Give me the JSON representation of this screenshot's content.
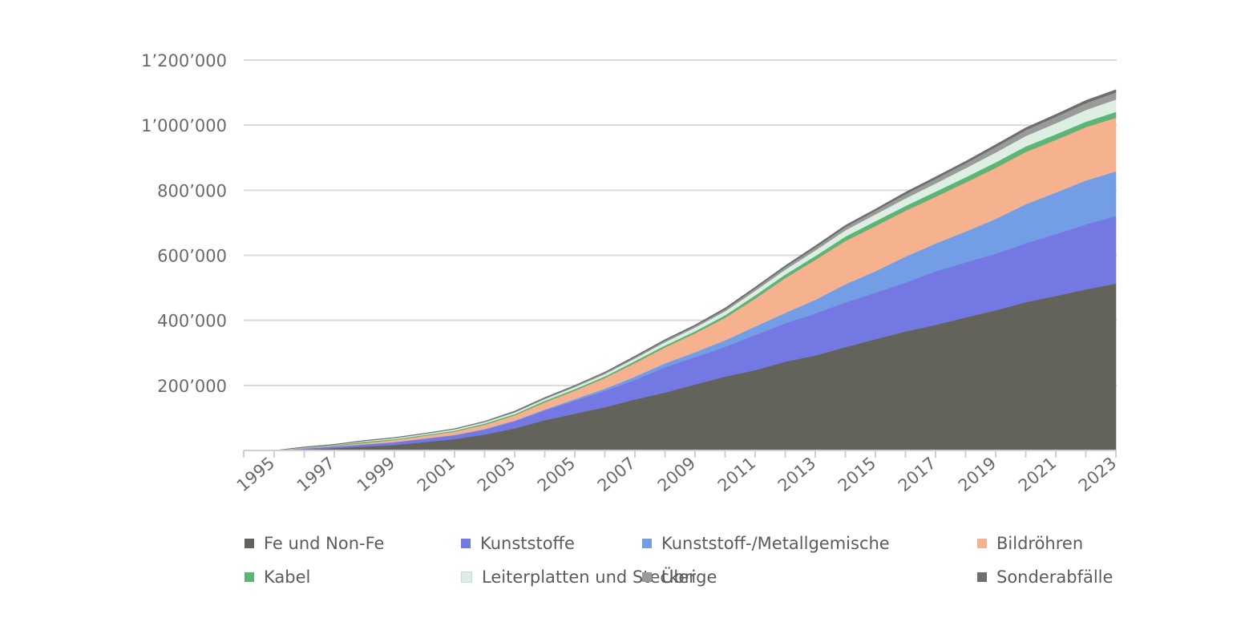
{
  "chart_data": {
    "type": "area",
    "stacked": true,
    "title": "",
    "xlabel": "",
    "ylabel": "",
    "ylim": [
      0,
      1200000
    ],
    "y_ticks": [
      "1’200’000",
      "1’000’000",
      "800’000",
      "600’000",
      "400’000",
      "200’000"
    ],
    "y_tick_values": [
      1200000,
      1000000,
      800000,
      600000,
      400000,
      200000
    ],
    "x": [
      1995,
      1996,
      1997,
      1998,
      1999,
      2000,
      2001,
      2002,
      2003,
      2004,
      2005,
      2006,
      2007,
      2008,
      2009,
      2010,
      2011,
      2012,
      2013,
      2014,
      2015,
      2016,
      2017,
      2018,
      2019,
      2020,
      2021,
      2022,
      2023
    ],
    "x_tick_labels": [
      "1995",
      "1997",
      "1999",
      "2001",
      "2003",
      "2005",
      "2007",
      "2009",
      "2011",
      "2013",
      "2015",
      "2017",
      "2019",
      "2021",
      "2023"
    ],
    "grid": true,
    "legend_position": "bottom",
    "series": [
      {
        "name": "Fe und Non-Fe",
        "color": "#63635b",
        "values": [
          0,
          3000,
          7000,
          12000,
          17000,
          26000,
          35000,
          49000,
          68000,
          93000,
          113000,
          133000,
          157000,
          178000,
          203000,
          227000,
          247000,
          273000,
          292000,
          318000,
          342000,
          366000,
          386000,
          409000,
          431000,
          456000,
          475000,
          495000,
          513000
        ]
      },
      {
        "name": "Kunststoffe",
        "color": "#7478e3",
        "values": [
          0,
          3000,
          5000,
          7000,
          8000,
          10000,
          12000,
          15000,
          22000,
          30000,
          40000,
          50000,
          60000,
          78000,
          84000,
          92000,
          108000,
          118000,
          129000,
          137000,
          143000,
          150000,
          165000,
          169000,
          174000,
          181000,
          190000,
          200000,
          208000
        ]
      },
      {
        "name": "Kunststoff-/Metallgemische",
        "color": "#739de4",
        "values": [
          0,
          0,
          0,
          0,
          1000,
          1000,
          1000,
          2000,
          2000,
          3000,
          5000,
          7000,
          10000,
          12000,
          15000,
          20000,
          26000,
          32000,
          42000,
          56000,
          66000,
          80000,
          85000,
          95000,
          107000,
          120000,
          128000,
          135000,
          137000
        ]
      },
      {
        "name": "Bildröhren",
        "color": "#f6b28f",
        "values": [
          0,
          1000,
          2000,
          4000,
          6000,
          8000,
          10000,
          13000,
          16000,
          22000,
          26000,
          33000,
          42000,
          49000,
          58000,
          69000,
          86000,
          107000,
          123000,
          133000,
          139000,
          141000,
          144000,
          151000,
          157000,
          161000,
          162000,
          164000,
          165000
        ]
      },
      {
        "name": "Kabel",
        "color": "#5cb477",
        "values": [
          0,
          1000,
          2000,
          4000,
          3000,
          3000,
          3000,
          4000,
          4000,
          5000,
          5000,
          5000,
          6000,
          6000,
          7000,
          8000,
          10000,
          11000,
          12000,
          14000,
          15000,
          15000,
          16000,
          16000,
          17000,
          17000,
          17000,
          17000,
          18000
        ]
      },
      {
        "name": "Leiterplatten und Stecker",
        "color": "#dcefe2",
        "values": [
          0,
          1000,
          1000,
          2000,
          3000,
          3000,
          4000,
          4000,
          5000,
          5000,
          6000,
          7000,
          8000,
          10000,
          11000,
          12000,
          14000,
          15000,
          17000,
          19000,
          21000,
          23000,
          25000,
          28000,
          30000,
          32000,
          34000,
          36000,
          38000
        ]
      },
      {
        "name": "Übrige",
        "color": "#9a9a9a",
        "values": [
          0,
          1000,
          1000,
          1000,
          1000,
          1000,
          1000,
          2000,
          2000,
          3000,
          3000,
          4000,
          4000,
          5000,
          5000,
          6000,
          7000,
          8000,
          9000,
          10000,
          11000,
          13000,
          14000,
          15000,
          17000,
          18000,
          20000,
          21000,
          22000
        ]
      },
      {
        "name": "Sonderabfälle",
        "color": "#6e6e6e",
        "values": [
          0,
          1000,
          1000,
          1000,
          1000,
          1000,
          1000,
          1000,
          2000,
          2000,
          2000,
          2000,
          3000,
          3000,
          3000,
          4000,
          4000,
          4000,
          5000,
          5000,
          5000,
          6000,
          6000,
          6000,
          7000,
          7000,
          7000,
          8000,
          8000
        ]
      }
    ]
  }
}
